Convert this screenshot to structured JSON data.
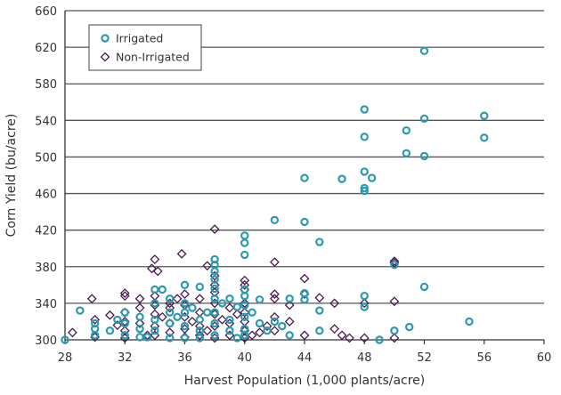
{
  "chart_data": {
    "type": "scatter",
    "xlabel": "Harvest Population (1,000 plants/acre)",
    "ylabel": "Corn Yield (bu/acre)",
    "xlim": [
      28,
      60
    ],
    "ylim": [
      300,
      660
    ],
    "xticks": [
      28,
      32,
      36,
      40,
      44,
      48,
      52,
      56,
      60
    ],
    "yticks": [
      300,
      340,
      380,
      420,
      460,
      500,
      540,
      580,
      620,
      660
    ],
    "grid": "horizontal",
    "legend_position": "top-left",
    "series": [
      {
        "name": "Irrigated",
        "marker": "circle",
        "color": "#2b9aae",
        "points": [
          [
            52,
            616
          ],
          [
            48,
            552
          ],
          [
            52,
            542
          ],
          [
            56,
            545
          ],
          [
            48,
            522
          ],
          [
            56,
            521
          ],
          [
            50.8,
            529
          ],
          [
            50.8,
            504
          ],
          [
            52,
            501
          ],
          [
            48,
            484
          ],
          [
            48.5,
            477
          ],
          [
            44,
            477
          ],
          [
            46.5,
            476
          ],
          [
            48,
            466
          ],
          [
            48,
            463
          ],
          [
            42,
            431
          ],
          [
            44,
            429
          ],
          [
            45,
            407
          ],
          [
            40,
            414
          ],
          [
            40,
            406
          ],
          [
            40,
            393
          ],
          [
            50,
            382
          ],
          [
            52,
            358
          ],
          [
            48,
            348
          ],
          [
            48,
            336
          ],
          [
            44,
            351
          ],
          [
            44,
            344
          ],
          [
            55,
            320
          ],
          [
            51,
            314
          ],
          [
            49,
            300
          ],
          [
            50,
            310
          ],
          [
            45,
            332
          ],
          [
            45,
            310
          ],
          [
            43,
            345
          ],
          [
            41,
            344
          ],
          [
            42,
            320
          ],
          [
            42.5,
            315
          ],
          [
            43,
            305
          ],
          [
            28,
            300
          ],
          [
            29,
            332
          ],
          [
            30,
            318
          ],
          [
            30,
            312
          ],
          [
            30,
            305
          ],
          [
            31,
            310
          ],
          [
            31.5,
            322
          ],
          [
            32,
            330
          ],
          [
            32,
            318
          ],
          [
            32,
            305
          ],
          [
            33,
            325
          ],
          [
            33,
            312
          ],
          [
            33.5,
            303
          ],
          [
            34,
            355
          ],
          [
            34,
            340
          ],
          [
            34,
            322
          ],
          [
            34,
            310
          ],
          [
            34.5,
            355
          ],
          [
            35,
            330
          ],
          [
            35,
            318
          ],
          [
            35,
            302
          ],
          [
            35.5,
            325
          ],
          [
            36,
            360
          ],
          [
            36,
            340
          ],
          [
            36,
            330
          ],
          [
            36,
            315
          ],
          [
            36,
            302
          ],
          [
            36.5,
            335
          ],
          [
            37,
            358
          ],
          [
            37,
            322
          ],
          [
            37,
            310
          ],
          [
            37.5,
            330
          ],
          [
            38,
            388
          ],
          [
            38,
            382
          ],
          [
            38,
            375
          ],
          [
            38,
            366
          ],
          [
            38,
            356
          ],
          [
            38,
            345
          ],
          [
            38,
            330
          ],
          [
            38,
            318
          ],
          [
            38,
            305
          ],
          [
            38.5,
            340
          ],
          [
            39,
            322
          ],
          [
            39,
            310
          ],
          [
            39.5,
            336
          ],
          [
            39.5,
            302
          ],
          [
            40,
            355
          ],
          [
            40,
            348
          ],
          [
            40,
            338
          ],
          [
            40,
            325
          ],
          [
            40,
            312
          ],
          [
            40,
            305
          ],
          [
            40.5,
            330
          ],
          [
            41,
            318
          ],
          [
            41.5,
            310
          ],
          [
            39,
            345
          ],
          [
            33,
            303
          ],
          [
            35,
            345
          ],
          [
            37,
            302
          ]
        ]
      },
      {
        "name": "Non-Irrigated",
        "marker": "diamond",
        "color": "#4b1a4e",
        "points": [
          [
            38,
            421
          ],
          [
            35.8,
            394
          ],
          [
            34,
            388
          ],
          [
            33.8,
            378
          ],
          [
            34.2,
            375
          ],
          [
            37.5,
            381
          ],
          [
            42,
            385
          ],
          [
            50,
            386
          ],
          [
            50,
            384
          ],
          [
            44,
            367
          ],
          [
            40,
            365
          ],
          [
            40,
            360
          ],
          [
            40,
            355
          ],
          [
            45,
            346
          ],
          [
            46,
            340
          ],
          [
            48,
            340
          ],
          [
            50,
            342
          ],
          [
            44,
            350
          ],
          [
            42,
            350
          ],
          [
            42,
            345
          ],
          [
            29.8,
            345
          ],
          [
            28.5,
            308
          ],
          [
            30,
            322
          ],
          [
            30,
            303
          ],
          [
            31,
            327
          ],
          [
            31.5,
            316
          ],
          [
            32,
            351
          ],
          [
            32,
            348
          ],
          [
            32,
            330
          ],
          [
            32,
            320
          ],
          [
            32,
            310
          ],
          [
            32,
            302
          ],
          [
            33,
            345
          ],
          [
            33,
            335
          ],
          [
            33,
            318
          ],
          [
            33.5,
            305
          ],
          [
            34,
            348
          ],
          [
            34,
            338
          ],
          [
            34,
            328
          ],
          [
            34,
            315
          ],
          [
            34,
            305
          ],
          [
            34.5,
            325
          ],
          [
            35,
            340
          ],
          [
            35,
            335
          ],
          [
            35,
            318
          ],
          [
            35,
            308
          ],
          [
            35.5,
            345
          ],
          [
            36,
            350
          ],
          [
            36,
            338
          ],
          [
            36,
            325
          ],
          [
            36,
            312
          ],
          [
            36,
            303
          ],
          [
            36.5,
            320
          ],
          [
            37,
            345
          ],
          [
            37,
            330
          ],
          [
            37,
            315
          ],
          [
            37,
            305
          ],
          [
            37.5,
            310
          ],
          [
            38,
            370
          ],
          [
            38,
            360
          ],
          [
            38,
            352
          ],
          [
            38,
            340
          ],
          [
            38,
            328
          ],
          [
            38,
            315
          ],
          [
            38,
            302
          ],
          [
            38.5,
            322
          ],
          [
            39,
            335
          ],
          [
            39,
            318
          ],
          [
            39,
            305
          ],
          [
            39.5,
            328
          ],
          [
            40,
            340
          ],
          [
            40,
            330
          ],
          [
            40,
            320
          ],
          [
            40,
            310
          ],
          [
            40,
            302
          ],
          [
            40.5,
            305
          ],
          [
            41,
            308
          ],
          [
            41.5,
            315
          ],
          [
            42,
            325
          ],
          [
            42,
            310
          ],
          [
            43,
            338
          ],
          [
            43,
            320
          ],
          [
            44,
            305
          ],
          [
            46,
            312
          ],
          [
            46.5,
            305
          ],
          [
            47,
            302
          ],
          [
            48,
            302
          ],
          [
            50,
            302
          ]
        ]
      }
    ]
  }
}
